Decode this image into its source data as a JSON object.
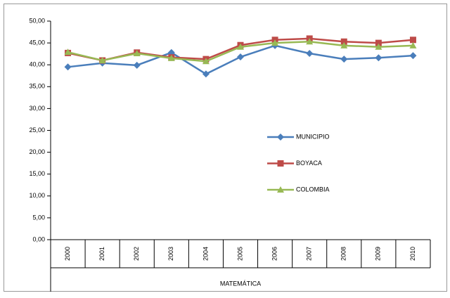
{
  "chart_data": {
    "type": "line",
    "x_label": "MATEMÁTICA",
    "categories": [
      "2000",
      "2001",
      "2002",
      "2003",
      "2004",
      "2005",
      "2006",
      "2007",
      "2008",
      "2009",
      "2010"
    ],
    "series": [
      {
        "name": "MUNICIPIO",
        "color": "#4a7ebb",
        "marker": "diamond",
        "values": [
          39.5,
          40.4,
          39.9,
          42.8,
          37.9,
          41.8,
          44.4,
          42.6,
          41.3,
          41.6,
          42.1
        ]
      },
      {
        "name": "BOYACA",
        "color": "#be4b48",
        "marker": "square",
        "values": [
          42.7,
          41.0,
          42.8,
          41.7,
          41.3,
          44.5,
          45.7,
          46.0,
          45.3,
          45.0,
          45.7
        ]
      },
      {
        "name": "COLOMBIA",
        "color": "#98b954",
        "marker": "triangle",
        "values": [
          42.9,
          41.0,
          42.6,
          41.5,
          40.8,
          44.1,
          45.0,
          45.3,
          44.4,
          44.1,
          44.4
        ]
      }
    ],
    "ylim": [
      0,
      50
    ],
    "yticks": [
      {
        "value": 0,
        "label": "0,00"
      },
      {
        "value": 5,
        "label": "5,00"
      },
      {
        "value": 10,
        "label": "10,00"
      },
      {
        "value": 15,
        "label": "15,00"
      },
      {
        "value": 20,
        "label": "20,00"
      },
      {
        "value": 25,
        "label": "25,00"
      },
      {
        "value": 30,
        "label": "30,00"
      },
      {
        "value": 35,
        "label": "35,00"
      },
      {
        "value": 40,
        "label": "40,00"
      },
      {
        "value": 45,
        "label": "45,00"
      },
      {
        "value": 50,
        "label": "50,00"
      }
    ],
    "grid": false,
    "legend": "center-right"
  }
}
